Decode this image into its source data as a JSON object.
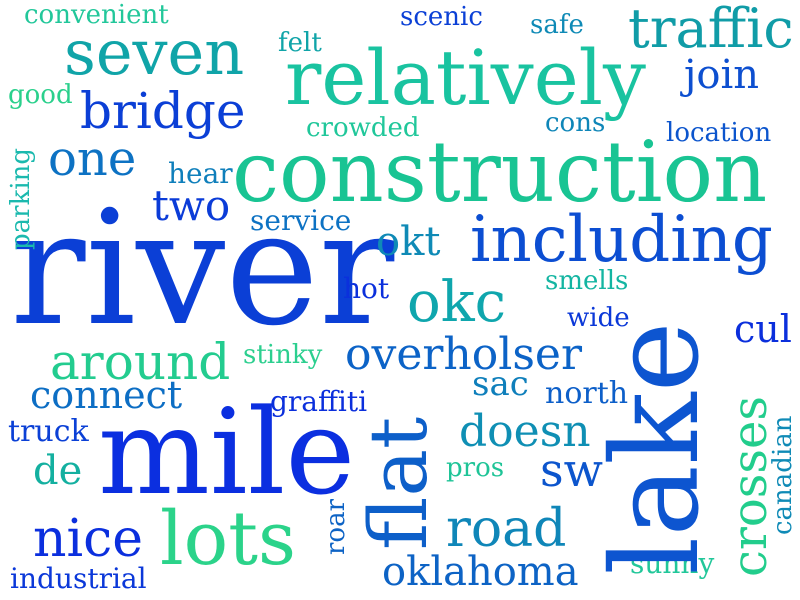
{
  "words": {
    "river": {
      "text": "river",
      "color": "#0b3fd6"
    },
    "construction": {
      "text": "construction",
      "color": "#19c493"
    },
    "mile": {
      "text": "mile",
      "color": "#0b2fe0"
    },
    "lake": {
      "text": "lake",
      "color": "#0d55d0"
    },
    "relatively": {
      "text": "relatively",
      "color": "#19c3a0"
    },
    "including": {
      "text": "including",
      "color": "#0c4ed2"
    },
    "lots": {
      "text": "lots",
      "color": "#2bd38a"
    },
    "flat": {
      "text": "flat",
      "color": "#0d5fc9"
    },
    "seven": {
      "text": "seven",
      "color": "#10a4a8"
    },
    "okc": {
      "text": "okc",
      "color": "#0fa6ad"
    },
    "around": {
      "text": "around",
      "color": "#23cc8f"
    },
    "overholser": {
      "text": "overholser",
      "color": "#0c63c7"
    },
    "crosses": {
      "text": "crosses",
      "color": "#22cd8c"
    },
    "traffic": {
      "text": "traffic",
      "color": "#109ca7"
    },
    "bridge": {
      "text": "bridge",
      "color": "#0b3fd6"
    },
    "one": {
      "text": "one",
      "color": "#0d72c3"
    },
    "road": {
      "text": "road",
      "color": "#0f86b8"
    },
    "oklahoma": {
      "text": "oklahoma",
      "color": "#0d63c5"
    },
    "doesn": {
      "text": "doesn",
      "color": "#0f8fb4"
    },
    "nice": {
      "text": "nice",
      "color": "#0b2fde"
    },
    "sw": {
      "text": "sw",
      "color": "#0c55cd"
    },
    "connect": {
      "text": "connect",
      "color": "#0d6ec4"
    },
    "two": {
      "text": "two",
      "color": "#0b3cd8"
    },
    "join": {
      "text": "join",
      "color": "#0d4fd0"
    },
    "cul": {
      "text": "cul",
      "color": "#0b2fdc"
    },
    "sac": {
      "text": "sac",
      "color": "#0f7fbb"
    },
    "de": {
      "text": "de",
      "color": "#14b0a0"
    },
    "okt": {
      "text": "okt",
      "color": "#0f8ab6"
    },
    "north": {
      "text": "north",
      "color": "#0d5fc9"
    },
    "truck": {
      "text": "truck",
      "color": "#0b40d6"
    },
    "graffiti": {
      "text": "graffiti",
      "color": "#0b2fdc"
    },
    "industrial": {
      "text": "industrial",
      "color": "#0b38d9"
    },
    "oklahoma_dup_guard": {
      "text": "",
      "color": "#ffffff"
    },
    "hear": {
      "text": "hear",
      "color": "#0f7fbb"
    },
    "service": {
      "text": "service",
      "color": "#0d72c3"
    },
    "hot": {
      "text": "hot",
      "color": "#0b30dc"
    },
    "smells": {
      "text": "smells",
      "color": "#14b5a2"
    },
    "wide": {
      "text": "wide",
      "color": "#0b38d8"
    },
    "stinky": {
      "text": "stinky",
      "color": "#2ccf8f"
    },
    "pros": {
      "text": "pros",
      "color": "#1fc497"
    },
    "sunny": {
      "text": "sunny",
      "color": "#22c79a"
    },
    "roar": {
      "text": "roar",
      "color": "#0d63c5"
    },
    "canadian": {
      "text": "canadian",
      "color": "#0f8ab6"
    },
    "parking": {
      "text": "parking",
      "color": "#1bb9ae"
    },
    "convenient": {
      "text": "convenient",
      "color": "#22c79a"
    },
    "scenic": {
      "text": "scenic",
      "color": "#0b40d6"
    },
    "safe": {
      "text": "safe",
      "color": "#0f8ab6"
    },
    "felt": {
      "text": "felt",
      "color": "#10a4a8"
    },
    "good": {
      "text": "good",
      "color": "#2ad08c"
    },
    "crowded": {
      "text": "crowded",
      "color": "#20c79a"
    },
    "cons": {
      "text": "cons",
      "color": "#0f86b8"
    },
    "location": {
      "text": "location",
      "color": "#0c55cd"
    }
  }
}
